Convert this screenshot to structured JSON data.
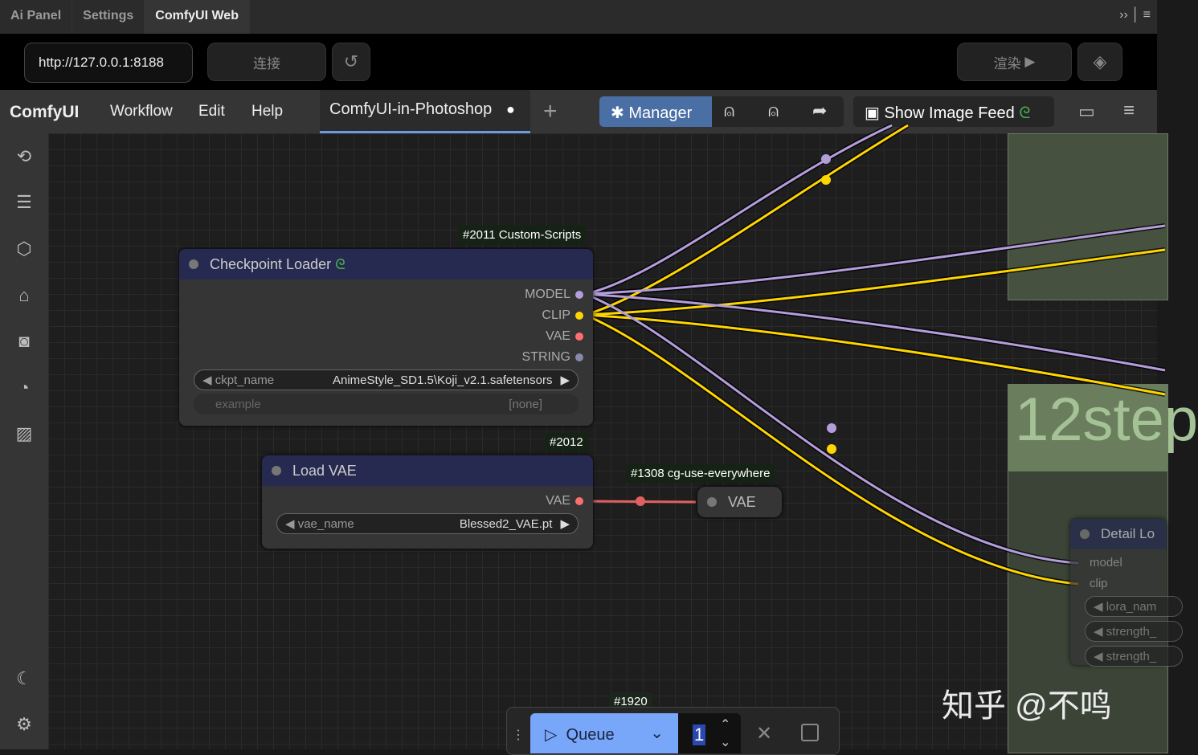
{
  "plugin_tabs": [
    "Ai Panel",
    "Settings",
    "ComfyUI Web"
  ],
  "connection": {
    "url": "http://127.0.0.1:8188",
    "connect_label": "连接",
    "render_label": "渲染"
  },
  "menu": {
    "logo": "ComfyUI",
    "items": [
      "Workflow",
      "Edit",
      "Help"
    ],
    "workflow_tab": "ComfyUI-in-Photoshop",
    "manager_label": "Manager",
    "image_feed_label": "Show Image Feed"
  },
  "accent": "#4a6fa5",
  "nodes": {
    "checkpoint": {
      "badge": "#2011 Custom-Scripts",
      "title": "Checkpoint Loader",
      "outputs": [
        "MODEL",
        "CLIP",
        "VAE",
        "STRING"
      ],
      "widget_label": "ckpt_name",
      "widget_value": "AnimeStyle_SD1.5\\Koji_v2.1.safetensors",
      "example_label": "example",
      "example_value": "[none]"
    },
    "vae": {
      "badge": "#2012",
      "title": "Load VAE",
      "output": "VAE",
      "widget_label": "vae_name",
      "widget_value": "Blessed2_VAE.pt"
    },
    "everywhere": {
      "badge": "#1308 cg-use-everywhere",
      "input": "VAE"
    },
    "group": {
      "title": "12step"
    },
    "detail": {
      "title": "Detail Lo",
      "inputs": [
        "model",
        "clip"
      ],
      "widgets": [
        "lora_nam",
        "strength_",
        "strength_"
      ]
    }
  },
  "queue": {
    "badge": "#1920",
    "label": "Queue",
    "count": "1"
  },
  "watermark": "知乎 @不鸣",
  "colors": {
    "model": "#b39ddb",
    "clip": "#ffd500",
    "vae": "#ff6e6e",
    "string": "#8888aa"
  }
}
